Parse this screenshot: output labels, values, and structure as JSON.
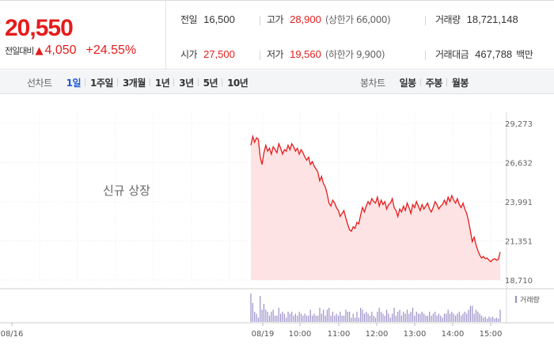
{
  "quote": {
    "price": "20,550",
    "change_label": "전일대비",
    "change_icon": "up-triangle-icon",
    "change": "4,050",
    "change_pct": "+24.55%",
    "prev_close": {
      "label": "전일",
      "value": "16,500"
    },
    "open": {
      "label": "시가",
      "value": "27,500"
    },
    "high": {
      "label": "고가",
      "value": "28,900",
      "extra": "(상한가 66,000)"
    },
    "low": {
      "label": "저가",
      "value": "19,560",
      "extra": "(하한가 9,900)"
    },
    "volume": {
      "label": "거래량",
      "value": "18,721,148"
    },
    "amount": {
      "label": "거래대금",
      "value": "467,788",
      "unit": "백만"
    }
  },
  "period_bar": {
    "line_title": "선차트",
    "line_tabs": [
      "1일",
      "1주일",
      "3개월",
      "1년",
      "3년",
      "5년",
      "10년"
    ],
    "active_line_tab": "1일",
    "candle_title": "봉차트",
    "candle_tabs": [
      "일봉",
      "주봉",
      "월봉"
    ]
  },
  "colors": {
    "up": "#e51c1c",
    "down": "#1e5ad2",
    "area_fill": "#fde3e3",
    "volume_bar": "#9b8fc9"
  },
  "chart_data": {
    "type": "area",
    "annotation": "신규 상장",
    "y_ticks": [
      "29,273",
      "26,632",
      "23,991",
      "21,351",
      "18,710"
    ],
    "ylim": [
      18710,
      29273
    ],
    "x_ticks": [
      "08/16",
      "08/19",
      "10:00",
      "11:00",
      "12:00",
      "13:00",
      "14:00",
      "15:00"
    ],
    "volume_legend": "거래량",
    "series": [
      {
        "values": [
          27800,
          28400,
          28000,
          28300,
          28200,
          27000,
          26500,
          27300,
          27800,
          27400,
          27600,
          27200,
          27700,
          27500,
          27300,
          27900,
          27600,
          27200,
          27500,
          27400,
          27800,
          27500,
          27900,
          27700,
          27400,
          27600,
          27200,
          27500,
          27300,
          27000,
          26800,
          27000,
          26500,
          26700,
          26400,
          26200,
          26000,
          25400,
          25700,
          25200,
          25000,
          24500,
          23900,
          23700,
          24100,
          23900,
          23600,
          23400,
          23000,
          23200,
          23400,
          22900,
          22500,
          22100,
          22000,
          22300,
          22200,
          22600,
          22500,
          23100,
          23600,
          23300,
          23700,
          24000,
          23800,
          24200,
          24000,
          23900,
          24300,
          23700,
          24100,
          23800,
          24000,
          23500,
          23800,
          23900,
          24200,
          23600,
          23400,
          23000,
          23500,
          23300,
          23700,
          23400,
          23900,
          23600,
          23200,
          23800,
          23600,
          24000,
          23700,
          23400,
          23800,
          23500,
          23700,
          23900,
          23500,
          23300,
          23600,
          24000,
          23800,
          23500,
          23700,
          23800,
          24100,
          23800,
          24300,
          24000,
          24400,
          24100,
          23900,
          24200,
          23800,
          23600,
          23900,
          23500,
          23200,
          22700,
          22000,
          21300,
          21600,
          21100,
          20700,
          20400,
          20200,
          20300,
          20150,
          20200,
          20050,
          19950,
          20100,
          20150,
          20050,
          20100,
          20600
        ]
      }
    ]
  }
}
